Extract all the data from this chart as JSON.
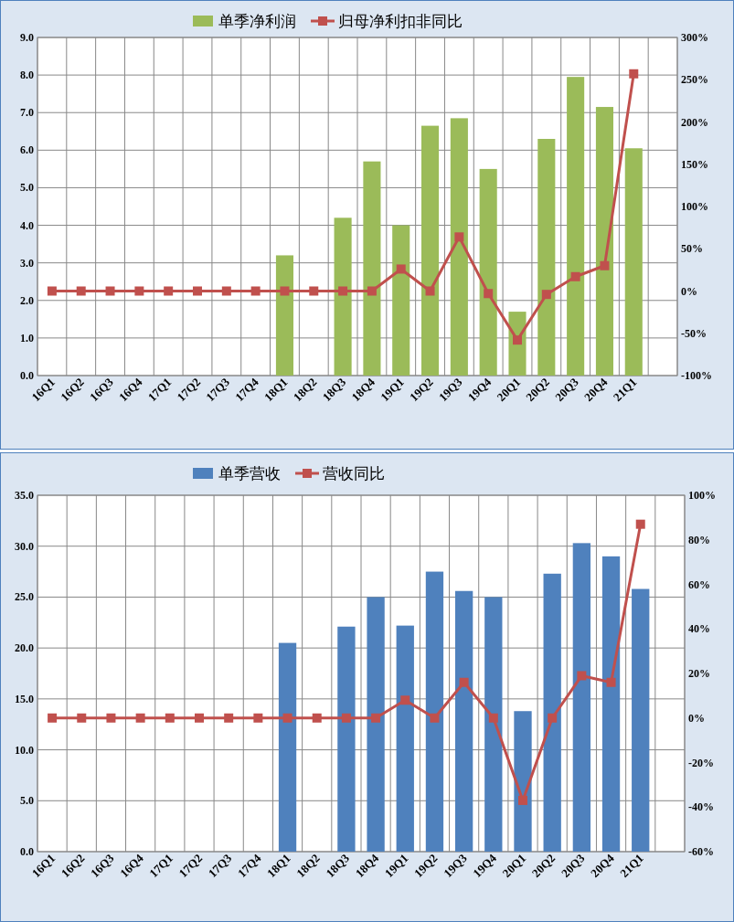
{
  "chart_data": [
    {
      "type": "bar",
      "categories": [
        "16Q1",
        "16Q2",
        "16Q3",
        "16Q4",
        "17Q1",
        "17Q2",
        "17Q3",
        "17Q4",
        "18Q1",
        "18Q2",
        "18Q3",
        "18Q4",
        "19Q1",
        "19Q2",
        "19Q3",
        "19Q4",
        "20Q1",
        "20Q2",
        "20Q3",
        "20Q4",
        "21Q1",
        null
      ],
      "series": [
        {
          "name": "单季净利润",
          "color": "#9bbb59",
          "values": [
            null,
            null,
            null,
            null,
            null,
            null,
            null,
            null,
            3.2,
            null,
            4.2,
            5.7,
            4.0,
            6.65,
            6.85,
            5.5,
            1.7,
            6.3,
            7.95,
            7.15,
            6.05,
            null
          ]
        },
        {
          "name": "归母净利扣非同比",
          "type": "line",
          "axis": "y2",
          "color": "#c0504d",
          "marker": "square",
          "values": [
            0,
            0,
            0,
            0,
            0,
            0,
            0,
            0,
            0,
            0,
            0,
            0,
            26,
            0,
            64,
            -3,
            -58,
            -4,
            17,
            30,
            257,
            null
          ]
        }
      ],
      "ylim": [
        0,
        9
      ],
      "yticks": [
        {
          "value": 0,
          "label": "0.0"
        },
        {
          "value": 1,
          "label": "1.0"
        },
        {
          "value": 2,
          "label": "2.0"
        },
        {
          "value": 3,
          "label": "3.0"
        },
        {
          "value": 4,
          "label": "4.0"
        },
        {
          "value": 5,
          "label": "5.0"
        },
        {
          "value": 6,
          "label": "6.0"
        },
        {
          "value": 7,
          "label": "7.0"
        },
        {
          "value": 8,
          "label": "8.0"
        },
        {
          "value": 9,
          "label": "9.0"
        }
      ],
      "y2lim": [
        -100,
        300
      ],
      "y2ticks": [
        {
          "value": -100,
          "label": "-100%"
        },
        {
          "value": -50,
          "label": "-50%"
        },
        {
          "value": 0,
          "label": "0%"
        },
        {
          "value": 50,
          "label": "50%"
        },
        {
          "value": 100,
          "label": "100%"
        },
        {
          "value": 150,
          "label": "150%"
        },
        {
          "value": 200,
          "label": "200%"
        },
        {
          "value": 250,
          "label": "250%"
        },
        {
          "value": 300,
          "label": "300%"
        }
      ],
      "grid": true,
      "legend": "top"
    },
    {
      "type": "bar",
      "categories": [
        "16Q1",
        "16Q2",
        "16Q3",
        "16Q4",
        "17Q1",
        "17Q2",
        "17Q3",
        "17Q4",
        "18Q1",
        "18Q2",
        "18Q3",
        "18Q4",
        "19Q1",
        "19Q2",
        "19Q3",
        "19Q4",
        "20Q1",
        "20Q2",
        "20Q3",
        "20Q4",
        "21Q1",
        null
      ],
      "series": [
        {
          "name": "单季营收",
          "color": "#4f81bd",
          "values": [
            null,
            null,
            null,
            null,
            null,
            null,
            null,
            null,
            20.5,
            null,
            22.1,
            25.0,
            22.2,
            27.5,
            25.6,
            25.0,
            13.8,
            27.3,
            30.3,
            29.0,
            25.8,
            null
          ]
        },
        {
          "name": "营收同比",
          "type": "line",
          "axis": "y2",
          "color": "#c0504d",
          "marker": "square",
          "values": [
            0,
            0,
            0,
            0,
            0,
            0,
            0,
            0,
            0,
            0,
            0,
            0,
            8,
            0,
            16,
            0,
            -37,
            0,
            19,
            16,
            87,
            null
          ]
        }
      ],
      "ylim": [
        0,
        35
      ],
      "yticks": [
        {
          "value": 0,
          "label": "0.0"
        },
        {
          "value": 5,
          "label": "5.0"
        },
        {
          "value": 10,
          "label": "10.0"
        },
        {
          "value": 15,
          "label": "15.0"
        },
        {
          "value": 20,
          "label": "20.0"
        },
        {
          "value": 25,
          "label": "25.0"
        },
        {
          "value": 30,
          "label": "30.0"
        },
        {
          "value": 35,
          "label": "35.0"
        }
      ],
      "y2lim": [
        -60,
        100
      ],
      "y2ticks": [
        {
          "value": -60,
          "label": "-60%"
        },
        {
          "value": -40,
          "label": "-40%"
        },
        {
          "value": -20,
          "label": "-20%"
        },
        {
          "value": 0,
          "label": "0%"
        },
        {
          "value": 20,
          "label": "20%"
        },
        {
          "value": 40,
          "label": "40%"
        },
        {
          "value": 60,
          "label": "60%"
        },
        {
          "value": 80,
          "label": "80%"
        },
        {
          "value": 100,
          "label": "100%"
        }
      ],
      "grid": true,
      "legend": "top"
    }
  ]
}
